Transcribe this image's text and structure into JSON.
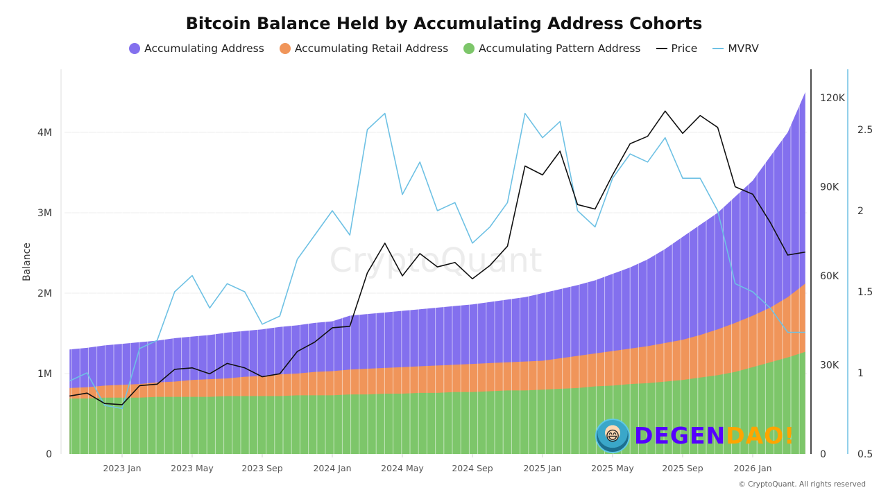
{
  "chart_data": {
    "type": "area",
    "title": "Bitcoin Balance Held by Accumulating Address Cohorts",
    "ylabel": "Balance",
    "ylim": [
      0,
      4800000
    ],
    "y2lim_price": [
      0,
      129000
    ],
    "y3lim_mvrv": [
      0.5,
      2.85
    ],
    "legend_position": "top",
    "grid": true,
    "left_ticks": [
      "0",
      "1M",
      "2M",
      "3M",
      "4M"
    ],
    "left_tick_values": [
      0,
      1000000,
      2000000,
      3000000,
      4000000
    ],
    "price_ticks": [
      "0",
      "30K",
      "60K",
      "90K",
      "120K"
    ],
    "price_tick_values": [
      0,
      30000,
      60000,
      90000,
      120000
    ],
    "mvrv_ticks": [
      "0.5",
      "1",
      "1.5",
      "2",
      "2.5"
    ],
    "mvrv_tick_values": [
      0.5,
      1,
      1.5,
      2,
      2.5
    ],
    "x_ticks": [
      "2023 Jan",
      "2023 May",
      "2023 Sep",
      "2024 Jan",
      "2024 May",
      "2024 Sep",
      "2025 Jan",
      "2025 May",
      "2025 Sep",
      "2026 Jan"
    ],
    "x_tick_dates": [
      "2023-01",
      "2023-05",
      "2023-09",
      "2024-01",
      "2024-05",
      "2024-09",
      "2025-01",
      "2025-05",
      "2025-09",
      "2026-01"
    ],
    "dates": [
      "2022-10",
      "2022-11",
      "2022-12",
      "2023-01",
      "2023-02",
      "2023-03",
      "2023-04",
      "2023-05",
      "2023-06",
      "2023-07",
      "2023-08",
      "2023-09",
      "2023-10",
      "2023-11",
      "2023-12",
      "2024-01",
      "2024-02",
      "2024-03",
      "2024-04",
      "2024-05",
      "2024-06",
      "2024-07",
      "2024-08",
      "2024-09",
      "2024-10",
      "2024-11",
      "2024-12",
      "2025-01",
      "2025-02",
      "2025-03",
      "2025-04",
      "2025-05",
      "2025-06",
      "2025-07",
      "2025-08",
      "2025-09",
      "2025-10",
      "2025-11",
      "2025-12",
      "2026-01",
      "2026-02",
      "2026-03",
      "2026-04"
    ],
    "series": [
      {
        "name": "Accumulating Address",
        "kind": "area",
        "color": "#8370ee",
        "values": [
          1300000,
          1320000,
          1350000,
          1370000,
          1390000,
          1410000,
          1440000,
          1460000,
          1480000,
          1510000,
          1530000,
          1550000,
          1580000,
          1600000,
          1630000,
          1650000,
          1720000,
          1740000,
          1760000,
          1780000,
          1800000,
          1820000,
          1840000,
          1860000,
          1890000,
          1920000,
          1950000,
          2000000,
          2050000,
          2100000,
          2160000,
          2240000,
          2320000,
          2420000,
          2550000,
          2700000,
          2850000,
          3000000,
          3200000,
          3400000,
          3700000,
          4000000,
          4500000
        ]
      },
      {
        "name": "Accumulating Retail Address",
        "kind": "area",
        "color": "#f0955a",
        "values": [
          820000,
          830000,
          850000,
          860000,
          870000,
          890000,
          900000,
          920000,
          930000,
          940000,
          960000,
          970000,
          990000,
          1000000,
          1020000,
          1030000,
          1050000,
          1060000,
          1070000,
          1080000,
          1090000,
          1100000,
          1110000,
          1120000,
          1130000,
          1140000,
          1150000,
          1160000,
          1190000,
          1220000,
          1250000,
          1280000,
          1310000,
          1340000,
          1380000,
          1420000,
          1480000,
          1550000,
          1630000,
          1720000,
          1820000,
          1950000,
          2120000
        ]
      },
      {
        "name": "Accumulating Pattern Address",
        "kind": "area",
        "color": "#7dc66a",
        "values": [
          690000,
          690000,
          700000,
          700000,
          700000,
          710000,
          710000,
          710000,
          710000,
          720000,
          720000,
          720000,
          720000,
          730000,
          730000,
          730000,
          740000,
          740000,
          750000,
          750000,
          760000,
          760000,
          770000,
          770000,
          780000,
          790000,
          790000,
          800000,
          810000,
          820000,
          840000,
          850000,
          870000,
          880000,
          900000,
          920000,
          950000,
          980000,
          1020000,
          1080000,
          1140000,
          1200000,
          1270000
        ]
      },
      {
        "name": "Price",
        "kind": "line",
        "axis": "price",
        "color": "#111111",
        "values": [
          19500,
          20500,
          17000,
          16600,
          23000,
          23500,
          28500,
          29000,
          27000,
          30500,
          29000,
          26000,
          27000,
          34500,
          37700,
          42500,
          43000,
          61000,
          71000,
          60000,
          67500,
          63000,
          64500,
          59000,
          63500,
          70000,
          97000,
          94000,
          102000,
          84000,
          82500,
          94000,
          104500,
          107000,
          115500,
          108000,
          114000,
          110000,
          90000,
          87500,
          78000,
          67000,
          68000
        ]
      },
      {
        "name": "MVRV",
        "kind": "line",
        "axis": "mvrv",
        "color": "#6ec1e4",
        "values": [
          0.95,
          1.0,
          0.8,
          0.78,
          1.15,
          1.2,
          1.5,
          1.6,
          1.4,
          1.55,
          1.5,
          1.3,
          1.35,
          1.7,
          1.85,
          2.0,
          1.85,
          2.5,
          2.6,
          2.1,
          2.3,
          2.0,
          2.05,
          1.8,
          1.9,
          2.05,
          2.6,
          2.45,
          2.55,
          2.0,
          1.9,
          2.2,
          2.35,
          2.3,
          2.45,
          2.2,
          2.2,
          2.0,
          1.55,
          1.5,
          1.4,
          1.25,
          1.25
        ]
      }
    ]
  },
  "watermark": "CryptoQuant",
  "logo": {
    "part1": "DEGEN",
    "part2": "DAO!",
    "colors": [
      "#5500ff",
      "#ffa500"
    ]
  },
  "copyright": "© CryptoQuant. All rights reserved"
}
